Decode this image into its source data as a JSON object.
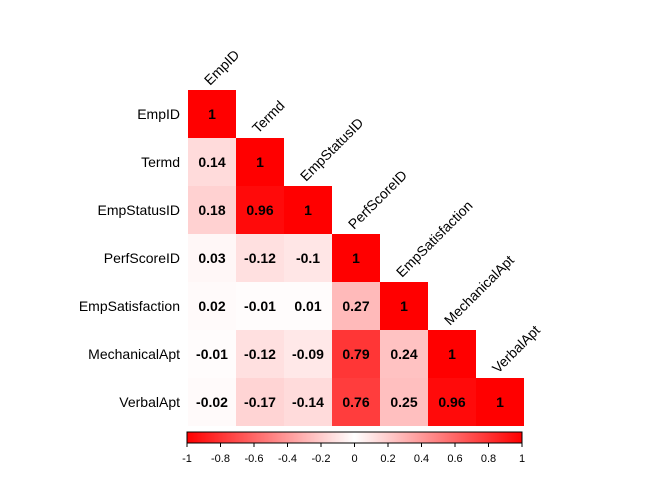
{
  "chart_data": {
    "type": "heatmap",
    "variables": [
      "EmpID",
      "Termd",
      "EmpStatusID",
      "PerfScoreID",
      "EmpSatisfaction",
      "MechanicalApt",
      "VerbalApt"
    ],
    "matrix": [
      [
        1
      ],
      [
        0.14,
        1
      ],
      [
        0.18,
        0.96,
        1
      ],
      [
        0.03,
        -0.12,
        -0.1,
        1
      ],
      [
        0.02,
        -0.01,
        0.01,
        0.27,
        1
      ],
      [
        -0.01,
        -0.12,
        -0.09,
        0.79,
        0.24,
        1
      ],
      [
        -0.02,
        -0.17,
        -0.14,
        0.76,
        0.25,
        0.96,
        1
      ]
    ],
    "value_labels": [
      [
        "1"
      ],
      [
        "0.14",
        "1"
      ],
      [
        "0.18",
        "0.96",
        "1"
      ],
      [
        "0.03",
        "-0.12",
        "-0.1",
        "1"
      ],
      [
        "0.02",
        "-0.01",
        "0.01",
        "0.27",
        "1"
      ],
      [
        "-0.01",
        "-0.12",
        "-0.09",
        "0.79",
        "0.24",
        "1"
      ],
      [
        "-0.02",
        "-0.17",
        "-0.14",
        "0.76",
        "0.25",
        "0.96",
        "1"
      ]
    ],
    "triangle": "lower",
    "colorbar": {
      "range": [
        -1,
        1
      ],
      "ticks": [
        "-1",
        "-0.8",
        "-0.6",
        "-0.4",
        "-0.2",
        "0",
        "0.2",
        "0.4",
        "0.6",
        "0.8",
        "1"
      ],
      "colors": [
        "#ff0000",
        "#ffffff",
        "#ff0000"
      ],
      "position": "bottom"
    }
  }
}
